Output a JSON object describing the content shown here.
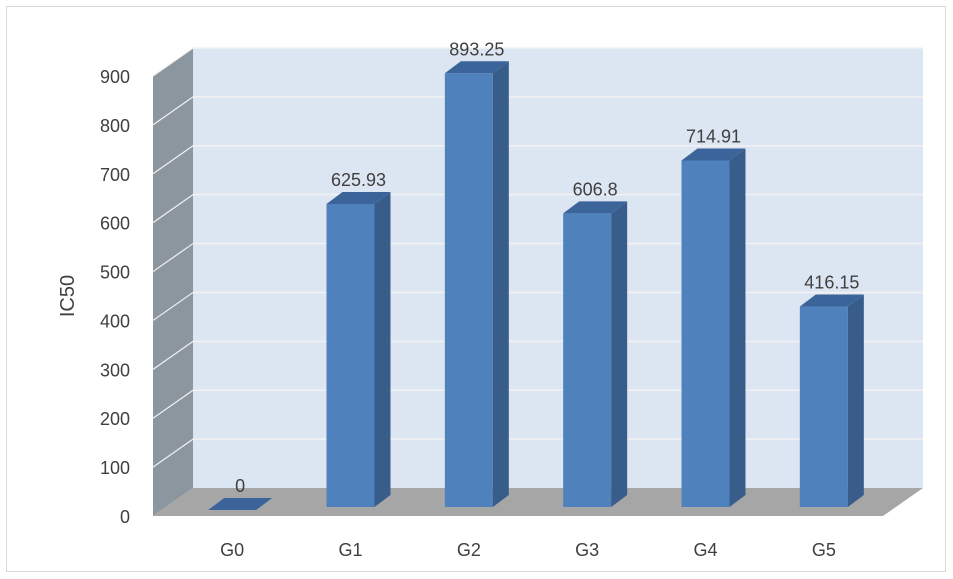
{
  "chart_data": {
    "type": "bar",
    "title": "",
    "xlabel": "",
    "ylabel": "IC50",
    "categories": [
      "G0",
      "G1",
      "G2",
      "G3",
      "G4",
      "G5"
    ],
    "values": [
      0,
      625.93,
      893.25,
      606.8,
      714.91,
      416.15
    ],
    "data_labels": [
      "0",
      "625.93",
      "893.25",
      "606.8",
      "714.91",
      "416.15"
    ],
    "y_ticks": [
      "0",
      "100",
      "200",
      "300",
      "400",
      "500",
      "600",
      "700",
      "800",
      "900"
    ],
    "ylim": [
      0,
      900
    ],
    "grid": true,
    "legend": "none",
    "style": "3d-column",
    "colors": {
      "bar_front": "#4f81bd",
      "bar_side": "#385d8a",
      "bar_top": "#3a649a",
      "back_wall": "#dce6f2",
      "side_wall": "#8c969f",
      "floor": "#a6a6a6",
      "gridline": "#f2f2f2"
    }
  }
}
